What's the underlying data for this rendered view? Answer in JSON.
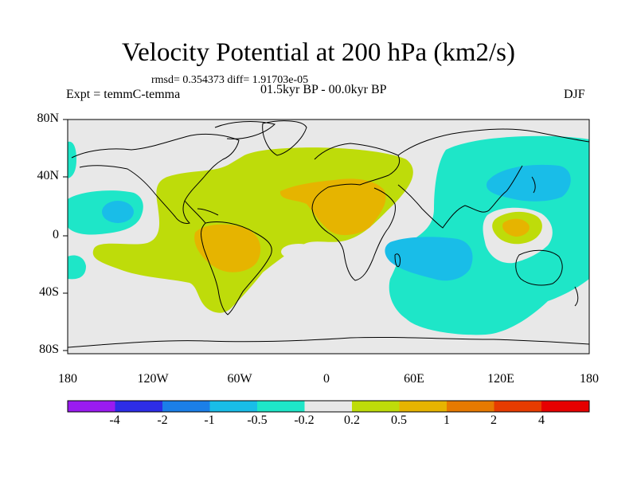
{
  "title": "Velocity Potential at 200 hPa (km2/s)",
  "stats_line": "rmsd= 0.354373 diff= 1.91703e-05",
  "experiment": "Expt = temmC-temma",
  "period": "01.5kyr BP - 00.0kyr BP",
  "season": "DJF",
  "lat_labels": [
    "80N",
    "40N",
    "0",
    "40S",
    "80S"
  ],
  "lon_labels": [
    "180",
    "120W",
    "60W",
    "0",
    "60E",
    "120E",
    "180"
  ],
  "colorbar": {
    "colors": [
      "#9a1bf0",
      "#2d2de6",
      "#1b7fe8",
      "#19bde8",
      "#1ee6c8",
      "#e8e8e8",
      "#bedc0a",
      "#e6b400",
      "#e67a00",
      "#e63c00",
      "#e60000"
    ],
    "labels": [
      "-4",
      "-2",
      "-1",
      "-0.5",
      "-0.2",
      "0.2",
      "0.5",
      "1",
      "2",
      "4"
    ]
  },
  "field_colors": {
    "neutral": "#e8e8e8",
    "neg_weak": "#1ee6c8",
    "neg_mod": "#19bde8",
    "pos_weak": "#bedc0a",
    "pos_mod": "#e6b400",
    "coast": "#000000"
  }
}
